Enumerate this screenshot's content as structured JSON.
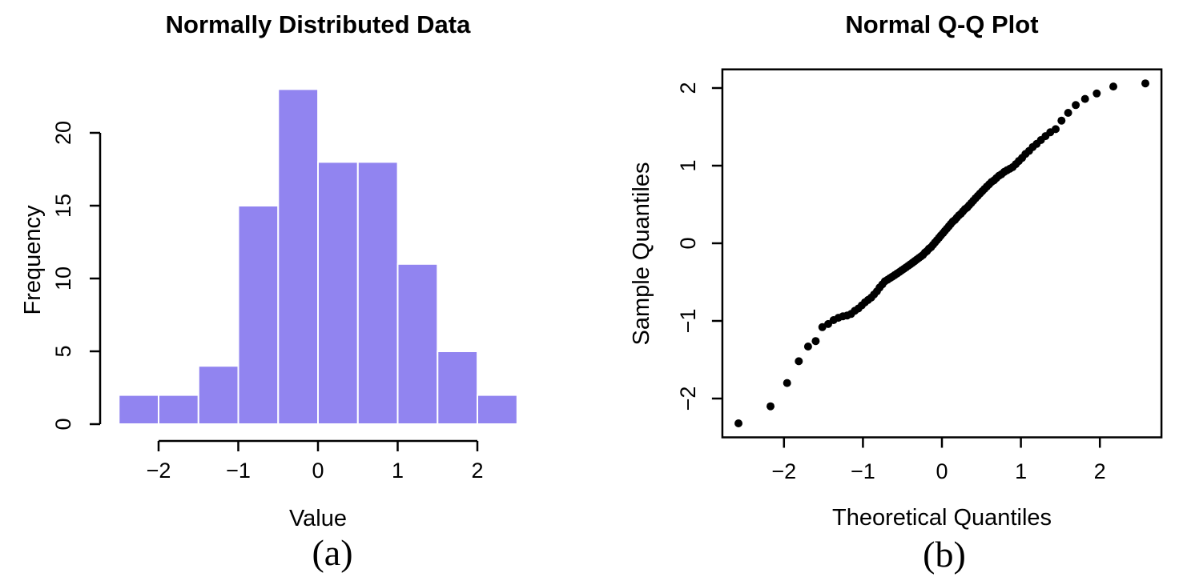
{
  "figure": {
    "background": "#ffffff",
    "text_color": "#000000"
  },
  "chart_data": [
    {
      "type": "bar",
      "subtype": "histogram",
      "title": "Normally Distributed Data",
      "xlabel": "Value",
      "ylabel": "Frequency",
      "caption": "(a)",
      "bar_color": "#9184F0",
      "bar_border_color": "#ffffff",
      "bin_edges": [
        -2.5,
        -2.0,
        -1.5,
        -1.0,
        -0.5,
        0.0,
        0.5,
        1.0,
        1.5,
        2.0,
        2.5
      ],
      "counts": [
        2,
        2,
        4,
        15,
        23,
        18,
        18,
        11,
        5,
        2
      ],
      "x_ticks": [
        -2,
        -1,
        0,
        1,
        2
      ],
      "y_ticks": [
        0,
        5,
        10,
        15,
        20
      ],
      "xlim": [
        -2.7,
        2.7
      ],
      "ylim": [
        0,
        23
      ],
      "grid": false,
      "legend": false
    },
    {
      "type": "scatter",
      "subtype": "qq-plot",
      "title": "Normal Q-Q Plot",
      "xlabel": "Theoretical Quantiles",
      "ylabel": "Sample Quantiles",
      "caption": "(b)",
      "point_color": "#000000",
      "x_ticks": [
        -2,
        -1,
        0,
        1,
        2
      ],
      "y_ticks": [
        -2,
        -1,
        0,
        1,
        2
      ],
      "xlim": [
        -2.78,
        2.78
      ],
      "ylim": [
        -2.5,
        2.24
      ],
      "grid": false,
      "legend": false,
      "x": [
        -2.576,
        -2.17,
        -1.96,
        -1.812,
        -1.695,
        -1.598,
        -1.514,
        -1.44,
        -1.372,
        -1.311,
        -1.254,
        -1.2,
        -1.15,
        -1.103,
        -1.058,
        -1.015,
        -0.974,
        -0.935,
        -0.896,
        -0.86,
        -0.824,
        -0.789,
        -0.755,
        -0.722,
        -0.69,
        -0.659,
        -0.628,
        -0.598,
        -0.568,
        -0.539,
        -0.51,
        -0.482,
        -0.454,
        -0.426,
        -0.399,
        -0.372,
        -0.345,
        -0.319,
        -0.292,
        -0.266,
        -0.24,
        -0.215,
        -0.189,
        -0.164,
        -0.138,
        -0.113,
        -0.088,
        -0.063,
        -0.038,
        -0.013,
        0.013,
        0.038,
        0.063,
        0.088,
        0.113,
        0.138,
        0.164,
        0.189,
        0.215,
        0.24,
        0.266,
        0.292,
        0.319,
        0.345,
        0.372,
        0.399,
        0.426,
        0.454,
        0.482,
        0.51,
        0.539,
        0.568,
        0.598,
        0.628,
        0.659,
        0.69,
        0.722,
        0.755,
        0.789,
        0.824,
        0.86,
        0.896,
        0.935,
        0.974,
        1.015,
        1.058,
        1.103,
        1.15,
        1.2,
        1.254,
        1.311,
        1.372,
        1.44,
        1.514,
        1.598,
        1.695,
        1.812,
        1.96,
        2.17,
        2.576
      ],
      "y": [
        -2.32,
        -2.1,
        -1.8,
        -1.52,
        -1.33,
        -1.26,
        -1.08,
        -1.04,
        -0.99,
        -0.96,
        -0.94,
        -0.93,
        -0.91,
        -0.87,
        -0.84,
        -0.8,
        -0.76,
        -0.73,
        -0.7,
        -0.66,
        -0.62,
        -0.57,
        -0.53,
        -0.49,
        -0.47,
        -0.45,
        -0.43,
        -0.41,
        -0.39,
        -0.37,
        -0.35,
        -0.33,
        -0.31,
        -0.29,
        -0.27,
        -0.25,
        -0.23,
        -0.21,
        -0.19,
        -0.17,
        -0.15,
        -0.12,
        -0.1,
        -0.07,
        -0.05,
        -0.02,
        0.01,
        0.04,
        0.07,
        0.1,
        0.13,
        0.16,
        0.19,
        0.22,
        0.25,
        0.28,
        0.3,
        0.33,
        0.36,
        0.38,
        0.41,
        0.44,
        0.46,
        0.49,
        0.52,
        0.55,
        0.58,
        0.61,
        0.64,
        0.67,
        0.7,
        0.73,
        0.76,
        0.79,
        0.81,
        0.84,
        0.87,
        0.89,
        0.92,
        0.94,
        0.96,
        0.98,
        1.02,
        1.06,
        1.1,
        1.15,
        1.19,
        1.24,
        1.28,
        1.33,
        1.38,
        1.43,
        1.47,
        1.58,
        1.68,
        1.78,
        1.86,
        1.93,
        2.02,
        2.06
      ]
    }
  ]
}
